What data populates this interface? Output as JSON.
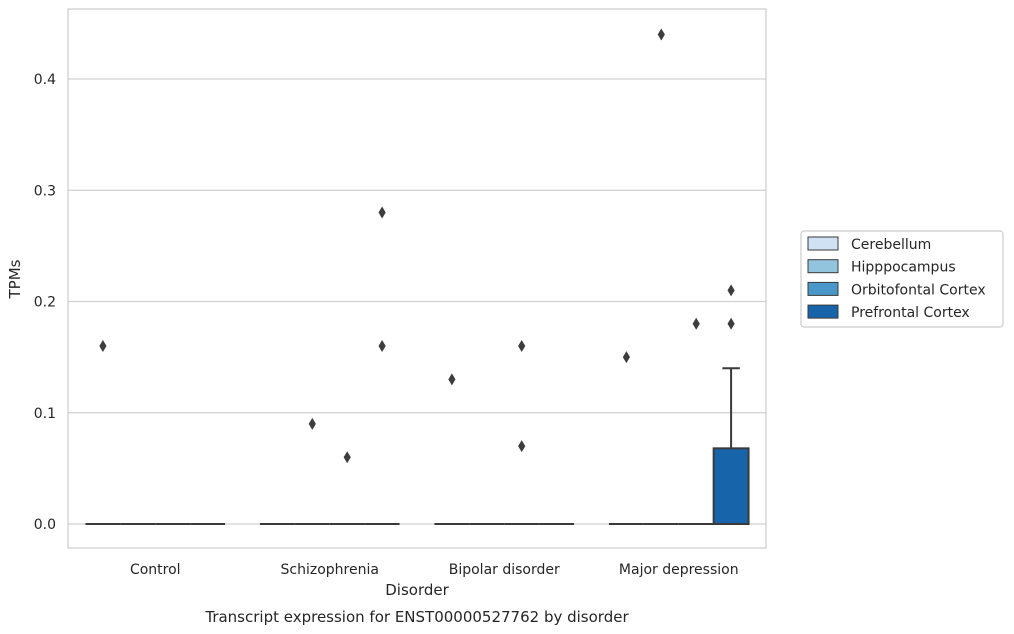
{
  "chart_data": {
    "type": "box",
    "title": "Transcript expression for ENST00000527762 by disorder",
    "xlabel": "Disorder",
    "ylabel": "TPMs",
    "categories": [
      "Control",
      "Schizophrenia",
      "Bipolar disorder",
      "Major depression"
    ],
    "ylim": [
      -0.022,
      0.464
    ],
    "yticks": [
      0.0,
      0.1,
      0.2,
      0.3,
      0.4
    ],
    "ytick_labels": [
      "0.0",
      "0.1",
      "0.2",
      "0.3",
      "0.4"
    ],
    "grid": "horizontal",
    "legend_position": "right",
    "colors": {
      "Cerebellum": "#cfe1f2",
      "Hipppocampus": "#93c4de",
      "Orbitofontal Cortex": "#4a98c9",
      "Prefrontal Cortex": "#1764ab"
    },
    "series": [
      {
        "name": "Cerebellum",
        "boxes": [
          {
            "q1": 0,
            "median": 0,
            "q3": 0,
            "whisker_low": 0,
            "whisker_high": 0,
            "outliers": [
              0.16
            ]
          },
          {
            "q1": 0,
            "median": 0,
            "q3": 0,
            "whisker_low": 0,
            "whisker_high": 0,
            "outliers": []
          },
          {
            "q1": 0,
            "median": 0,
            "q3": 0,
            "whisker_low": 0,
            "whisker_high": 0,
            "outliers": [
              0.13
            ]
          },
          {
            "q1": 0,
            "median": 0,
            "q3": 0,
            "whisker_low": 0,
            "whisker_high": 0,
            "outliers": [
              0.15
            ]
          }
        ]
      },
      {
        "name": "Hipppocampus",
        "boxes": [
          {
            "q1": 0,
            "median": 0,
            "q3": 0,
            "whisker_low": 0,
            "whisker_high": 0,
            "outliers": []
          },
          {
            "q1": 0,
            "median": 0,
            "q3": 0,
            "whisker_low": 0,
            "whisker_high": 0,
            "outliers": [
              0.09
            ]
          },
          {
            "q1": 0,
            "median": 0,
            "q3": 0,
            "whisker_low": 0,
            "whisker_high": 0,
            "outliers": []
          },
          {
            "q1": 0,
            "median": 0,
            "q3": 0,
            "whisker_low": 0,
            "whisker_high": 0,
            "outliers": [
              0.44
            ]
          }
        ]
      },
      {
        "name": "Orbitofontal Cortex",
        "boxes": [
          {
            "q1": 0,
            "median": 0,
            "q3": 0,
            "whisker_low": 0,
            "whisker_high": 0,
            "outliers": []
          },
          {
            "q1": 0,
            "median": 0,
            "q3": 0,
            "whisker_low": 0,
            "whisker_high": 0,
            "outliers": [
              0.06
            ]
          },
          {
            "q1": 0,
            "median": 0,
            "q3": 0,
            "whisker_low": 0,
            "whisker_high": 0,
            "outliers": [
              0.07,
              0.16
            ]
          },
          {
            "q1": 0,
            "median": 0,
            "q3": 0,
            "whisker_low": 0,
            "whisker_high": 0,
            "outliers": [
              0.18
            ]
          }
        ]
      },
      {
        "name": "Prefrontal Cortex",
        "boxes": [
          {
            "q1": 0,
            "median": 0,
            "q3": 0,
            "whisker_low": 0,
            "whisker_high": 0,
            "outliers": []
          },
          {
            "q1": 0,
            "median": 0,
            "q3": 0,
            "whisker_low": 0,
            "whisker_high": 0,
            "outliers": [
              0.16,
              0.28
            ]
          },
          {
            "q1": 0,
            "median": 0,
            "q3": 0,
            "whisker_low": 0,
            "whisker_high": 0,
            "outliers": []
          },
          {
            "q1": 0,
            "median": 0,
            "q3": 0.068,
            "whisker_low": 0,
            "whisker_high": 0.14,
            "outliers": [
              0.18,
              0.21
            ]
          }
        ]
      }
    ]
  }
}
